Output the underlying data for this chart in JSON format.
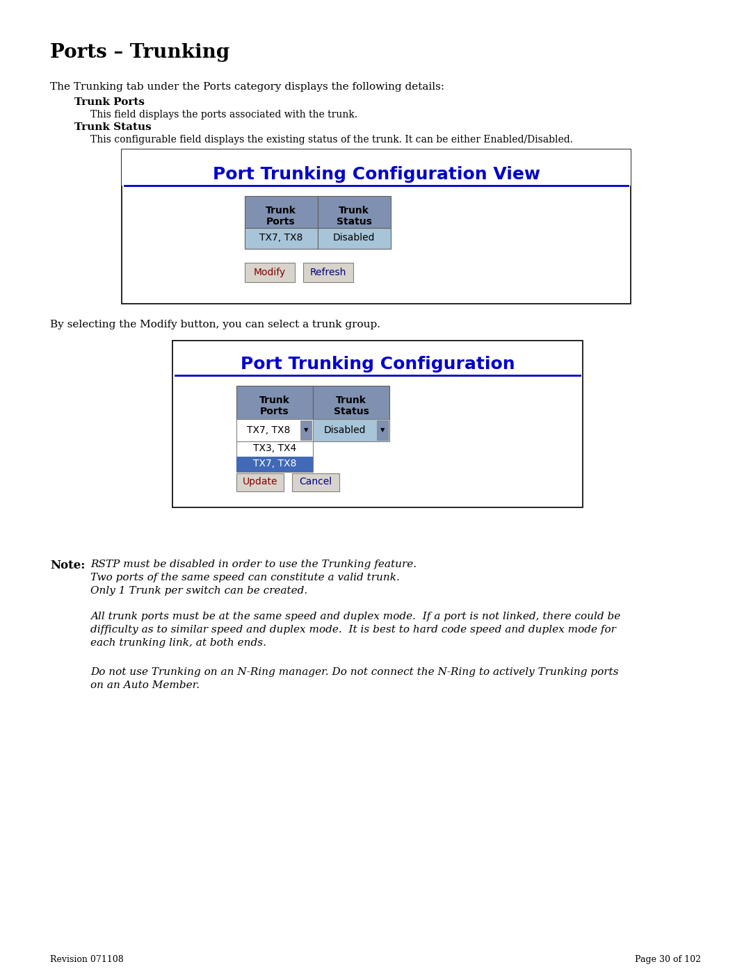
{
  "page_bg": "#ffffff",
  "title": "Ports – Trunking",
  "body_color": "#000000",
  "header_bg": "#8090b0",
  "data_bg_light": "#a8c4d8",
  "data_bg_dark": "#8090b0",
  "button_bg": "#d8d4cc",
  "modify_text_color": "#800000",
  "refresh_text_color": "#000080",
  "blue_title_color": "#0000cc",
  "footer_revision": "Revision 071108",
  "footer_page": "Page 30 of 102"
}
